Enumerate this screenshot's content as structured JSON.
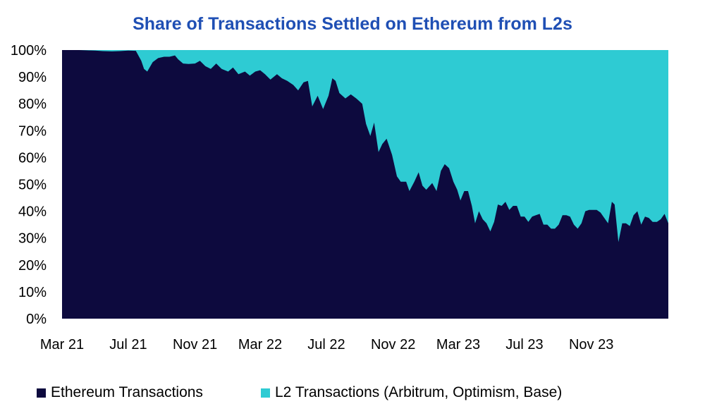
{
  "chart_data": {
    "type": "area",
    "stacked": true,
    "percent_stacked": true,
    "title": "Share of Transactions Settled on Ethereum from L2s",
    "xlabel": "",
    "ylabel": "",
    "ylim": [
      0,
      100
    ],
    "y_ticks": [
      "0%",
      "10%",
      "20%",
      "30%",
      "40%",
      "50%",
      "60%",
      "70%",
      "80%",
      "90%",
      "100%"
    ],
    "x_ticks": [
      "Mar 21",
      "Jul 21",
      "Nov 21",
      "Mar 22",
      "Jul 22",
      "Nov 22",
      "Mar 23",
      "Jul 23",
      "Nov 23"
    ],
    "grid": false,
    "legend_position": "bottom",
    "colors": {
      "ethereum": "#0d0a3e",
      "l2": "#2ecbd3",
      "title": "#1f4fb4"
    },
    "series": [
      {
        "name": "Ethereum Transactions",
        "points": [
          [
            "2021-03-01",
            100
          ],
          [
            "2021-03-15",
            100
          ],
          [
            "2021-04-01",
            100
          ],
          [
            "2021-04-15",
            99.9
          ],
          [
            "2021-05-01",
            99.8
          ],
          [
            "2021-05-15",
            99.6
          ],
          [
            "2021-06-01",
            99.5
          ],
          [
            "2021-06-15",
            99.6
          ],
          [
            "2021-07-01",
            99.8
          ],
          [
            "2021-07-15",
            99.7
          ],
          [
            "2021-07-25",
            96
          ],
          [
            "2021-07-30",
            93
          ],
          [
            "2021-08-05",
            92
          ],
          [
            "2021-08-15",
            95.5
          ],
          [
            "2021-08-25",
            97
          ],
          [
            "2021-09-05",
            97.5
          ],
          [
            "2021-09-15",
            97.5
          ],
          [
            "2021-09-25",
            98
          ],
          [
            "2021-10-01",
            96.5
          ],
          [
            "2021-10-10",
            95
          ],
          [
            "2021-10-20",
            94.8
          ],
          [
            "2021-11-01",
            95
          ],
          [
            "2021-11-10",
            96
          ],
          [
            "2021-11-20",
            94
          ],
          [
            "2021-11-30",
            93
          ],
          [
            "2021-12-10",
            95
          ],
          [
            "2021-12-20",
            93
          ],
          [
            "2022-01-01",
            92
          ],
          [
            "2022-01-10",
            93.5
          ],
          [
            "2022-01-20",
            91
          ],
          [
            "2022-02-01",
            92
          ],
          [
            "2022-02-10",
            90.5
          ],
          [
            "2022-02-20",
            92
          ],
          [
            "2022-03-01",
            92.5
          ],
          [
            "2022-03-10",
            91
          ],
          [
            "2022-03-20",
            89
          ],
          [
            "2022-04-01",
            91
          ],
          [
            "2022-04-10",
            89.5
          ],
          [
            "2022-04-20",
            88.5
          ],
          [
            "2022-05-01",
            87
          ],
          [
            "2022-05-10",
            85
          ],
          [
            "2022-05-20",
            88
          ],
          [
            "2022-05-28",
            88.5
          ],
          [
            "2022-06-05",
            79
          ],
          [
            "2022-06-15",
            83
          ],
          [
            "2022-06-25",
            78
          ],
          [
            "2022-07-05",
            83
          ],
          [
            "2022-07-12",
            89.5
          ],
          [
            "2022-07-18",
            88.5
          ],
          [
            "2022-07-25",
            84
          ],
          [
            "2022-08-05",
            82
          ],
          [
            "2022-08-15",
            83.5
          ],
          [
            "2022-08-25",
            82
          ],
          [
            "2022-09-05",
            80
          ],
          [
            "2022-09-12",
            72.5
          ],
          [
            "2022-09-20",
            68
          ],
          [
            "2022-09-27",
            73
          ],
          [
            "2022-10-05",
            62
          ],
          [
            "2022-10-12",
            65
          ],
          [
            "2022-10-20",
            67
          ],
          [
            "2022-10-30",
            61
          ],
          [
            "2022-11-08",
            53
          ],
          [
            "2022-11-15",
            51
          ],
          [
            "2022-11-25",
            51
          ],
          [
            "2022-12-01",
            47.5
          ],
          [
            "2022-12-10",
            51
          ],
          [
            "2022-12-18",
            54.5
          ],
          [
            "2022-12-25",
            49.5
          ],
          [
            "2023-01-01",
            48
          ],
          [
            "2023-01-12",
            50.5
          ],
          [
            "2023-01-20",
            47.5
          ],
          [
            "2023-01-28",
            55
          ],
          [
            "2023-02-04",
            57.5
          ],
          [
            "2023-02-12",
            56
          ],
          [
            "2023-02-20",
            51
          ],
          [
            "2023-02-27",
            48
          ],
          [
            "2023-03-05",
            44
          ],
          [
            "2023-03-12",
            47.5
          ],
          [
            "2023-03-19",
            47.5
          ],
          [
            "2023-03-26",
            42
          ],
          [
            "2023-04-01",
            35.5
          ],
          [
            "2023-04-08",
            40
          ],
          [
            "2023-04-15",
            37
          ],
          [
            "2023-04-22",
            35.5
          ],
          [
            "2023-04-29",
            32.5
          ],
          [
            "2023-05-06",
            36
          ],
          [
            "2023-05-13",
            42.5
          ],
          [
            "2023-05-20",
            42
          ],
          [
            "2023-05-27",
            43.5
          ],
          [
            "2023-06-03",
            40.5
          ],
          [
            "2023-06-10",
            42
          ],
          [
            "2023-06-17",
            42
          ],
          [
            "2023-06-24",
            38
          ],
          [
            "2023-07-01",
            38
          ],
          [
            "2023-07-08",
            36
          ],
          [
            "2023-07-15",
            38
          ],
          [
            "2023-07-22",
            38.5
          ],
          [
            "2023-07-29",
            39
          ],
          [
            "2023-08-05",
            35
          ],
          [
            "2023-08-12",
            35
          ],
          [
            "2023-08-19",
            33.5
          ],
          [
            "2023-08-26",
            33.5
          ],
          [
            "2023-09-02",
            35
          ],
          [
            "2023-09-09",
            38.5
          ],
          [
            "2023-09-16",
            38.5
          ],
          [
            "2023-09-23",
            38
          ],
          [
            "2023-09-30",
            35
          ],
          [
            "2023-10-07",
            33.5
          ],
          [
            "2023-10-14",
            35.5
          ],
          [
            "2023-10-21",
            40
          ],
          [
            "2023-10-28",
            40.5
          ],
          [
            "2023-11-04",
            40.5
          ],
          [
            "2023-11-11",
            40.5
          ],
          [
            "2023-11-18",
            39.5
          ],
          [
            "2023-11-25",
            37.5
          ],
          [
            "2023-12-02",
            35.5
          ],
          [
            "2023-12-09",
            43.5
          ],
          [
            "2023-12-14",
            42.5
          ],
          [
            "2023-12-21",
            28.5
          ],
          [
            "2023-12-28",
            35.5
          ],
          [
            "2024-01-04",
            35.5
          ],
          [
            "2024-01-11",
            34.5
          ],
          [
            "2024-01-18",
            38.5
          ],
          [
            "2024-01-25",
            40
          ],
          [
            "2024-02-01",
            35
          ],
          [
            "2024-02-08",
            38
          ],
          [
            "2024-02-15",
            37.5
          ],
          [
            "2024-02-22",
            36
          ],
          [
            "2024-03-01",
            36
          ],
          [
            "2024-03-08",
            37
          ],
          [
            "2024-03-15",
            39
          ],
          [
            "2024-03-22",
            35.5
          ]
        ]
      },
      {
        "name": "L2 Transactions (Arbitrum, Optimism, Base)",
        "values": "remainder_to_100"
      }
    ]
  }
}
